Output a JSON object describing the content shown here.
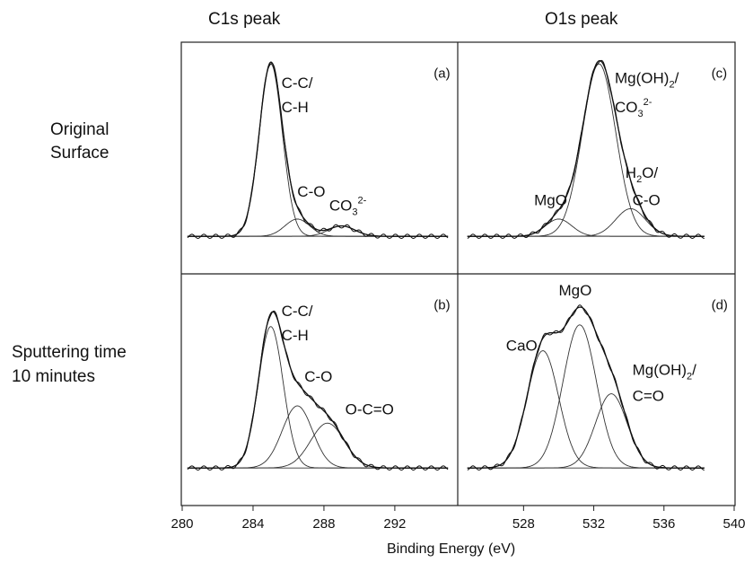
{
  "figure": {
    "col_titles": [
      "C1s peak",
      "O1s peak"
    ],
    "row_labels": [
      [
        "Original",
        "Surface"
      ],
      [
        "Sputtering time",
        "10 minutes"
      ]
    ],
    "xlabel": "Binding Energy (eV)"
  },
  "chart_data": [
    {
      "type": "line",
      "panel": "(a)",
      "xlim": [
        280,
        295.5
      ],
      "x_ticks": [
        280,
        284,
        288,
        292
      ],
      "baseline": 0.02,
      "peaks": [
        {
          "center": 285.0,
          "height": 1.0,
          "sigma": 0.65
        },
        {
          "center": 286.5,
          "height": 0.1,
          "sigma": 0.7
        },
        {
          "center": 289.0,
          "height": 0.06,
          "sigma": 0.75
        }
      ],
      "annotations": [
        {
          "text": "C-C/",
          "x": 285.6,
          "y": 0.88
        },
        {
          "text": "C-H",
          "x": 285.6,
          "y": 0.74
        },
        {
          "text": "C-O",
          "x": 286.5,
          "y": 0.25
        },
        {
          "text": "CO",
          "sub": "3",
          "sup": "2-",
          "x": 288.3,
          "y": 0.17
        },
        {
          "text": "(a)",
          "x": 294.2,
          "y": 0.94
        }
      ]
    },
    {
      "type": "line",
      "panel": "(b)",
      "xlim": [
        280,
        295.5
      ],
      "x_ticks": [
        280,
        284,
        288,
        292
      ],
      "baseline": 0.02,
      "peaks": [
        {
          "center": 285.0,
          "height": 0.82,
          "sigma": 0.7
        },
        {
          "center": 286.5,
          "height": 0.36,
          "sigma": 0.85
        },
        {
          "center": 288.2,
          "height": 0.26,
          "sigma": 0.95
        }
      ],
      "annotations": [
        {
          "text": "C-C/",
          "x": 285.6,
          "y": 0.9
        },
        {
          "text": "C-H",
          "x": 285.6,
          "y": 0.76
        },
        {
          "text": "C-O",
          "x": 286.9,
          "y": 0.52
        },
        {
          "text": "O-C=O",
          "x": 289.2,
          "y": 0.33
        },
        {
          "text": "(b)",
          "x": 294.2,
          "y": 0.94
        }
      ]
    },
    {
      "type": "line",
      "panel": "(c)",
      "xlim": [
        524.3,
        540
      ],
      "x_ticks": [
        528,
        532,
        536,
        540
      ],
      "baseline": 0.02,
      "peaks": [
        {
          "center": 530.0,
          "height": 0.1,
          "sigma": 0.75
        },
        {
          "center": 532.3,
          "height": 1.0,
          "sigma": 0.95
        },
        {
          "center": 534.1,
          "height": 0.16,
          "sigma": 0.85
        }
      ],
      "annotations": [
        {
          "text": "Mg(OH)",
          "sub": "2",
          "suffix": "/",
          "x": 533.2,
          "y": 0.91
        },
        {
          "text": "CO",
          "sub": "3",
          "sup": "2-",
          "x": 533.2,
          "y": 0.74
        },
        {
          "text": "H",
          "sub": "2",
          "suffix": "O/",
          "x": 533.8,
          "y": 0.36
        },
        {
          "text": "C-O",
          "x": 534.2,
          "y": 0.2
        },
        {
          "text": "MgO",
          "x": 528.6,
          "y": 0.2
        },
        {
          "text": "(c)",
          "x": 538.7,
          "y": 0.94
        }
      ]
    },
    {
      "type": "line",
      "panel": "(d)",
      "xlim": [
        524.3,
        540
      ],
      "x_ticks": [
        528,
        532,
        536,
        540
      ],
      "baseline": 0.02,
      "peaks": [
        {
          "center": 529.1,
          "height": 0.68,
          "sigma": 0.9
        },
        {
          "center": 531.2,
          "height": 0.83,
          "sigma": 0.95
        },
        {
          "center": 533.0,
          "height": 0.43,
          "sigma": 0.9
        }
      ],
      "annotations": [
        {
          "text": "MgO",
          "x": 530.0,
          "y": 1.02
        },
        {
          "text": "CaO",
          "x": 527.0,
          "y": 0.7
        },
        {
          "text": "Mg(OH)",
          "sub": "2",
          "suffix": "/",
          "x": 534.2,
          "y": 0.56
        },
        {
          "text": "C=O",
          "x": 534.2,
          "y": 0.41
        },
        {
          "text": "(d)",
          "x": 538.7,
          "y": 0.94
        }
      ]
    }
  ]
}
